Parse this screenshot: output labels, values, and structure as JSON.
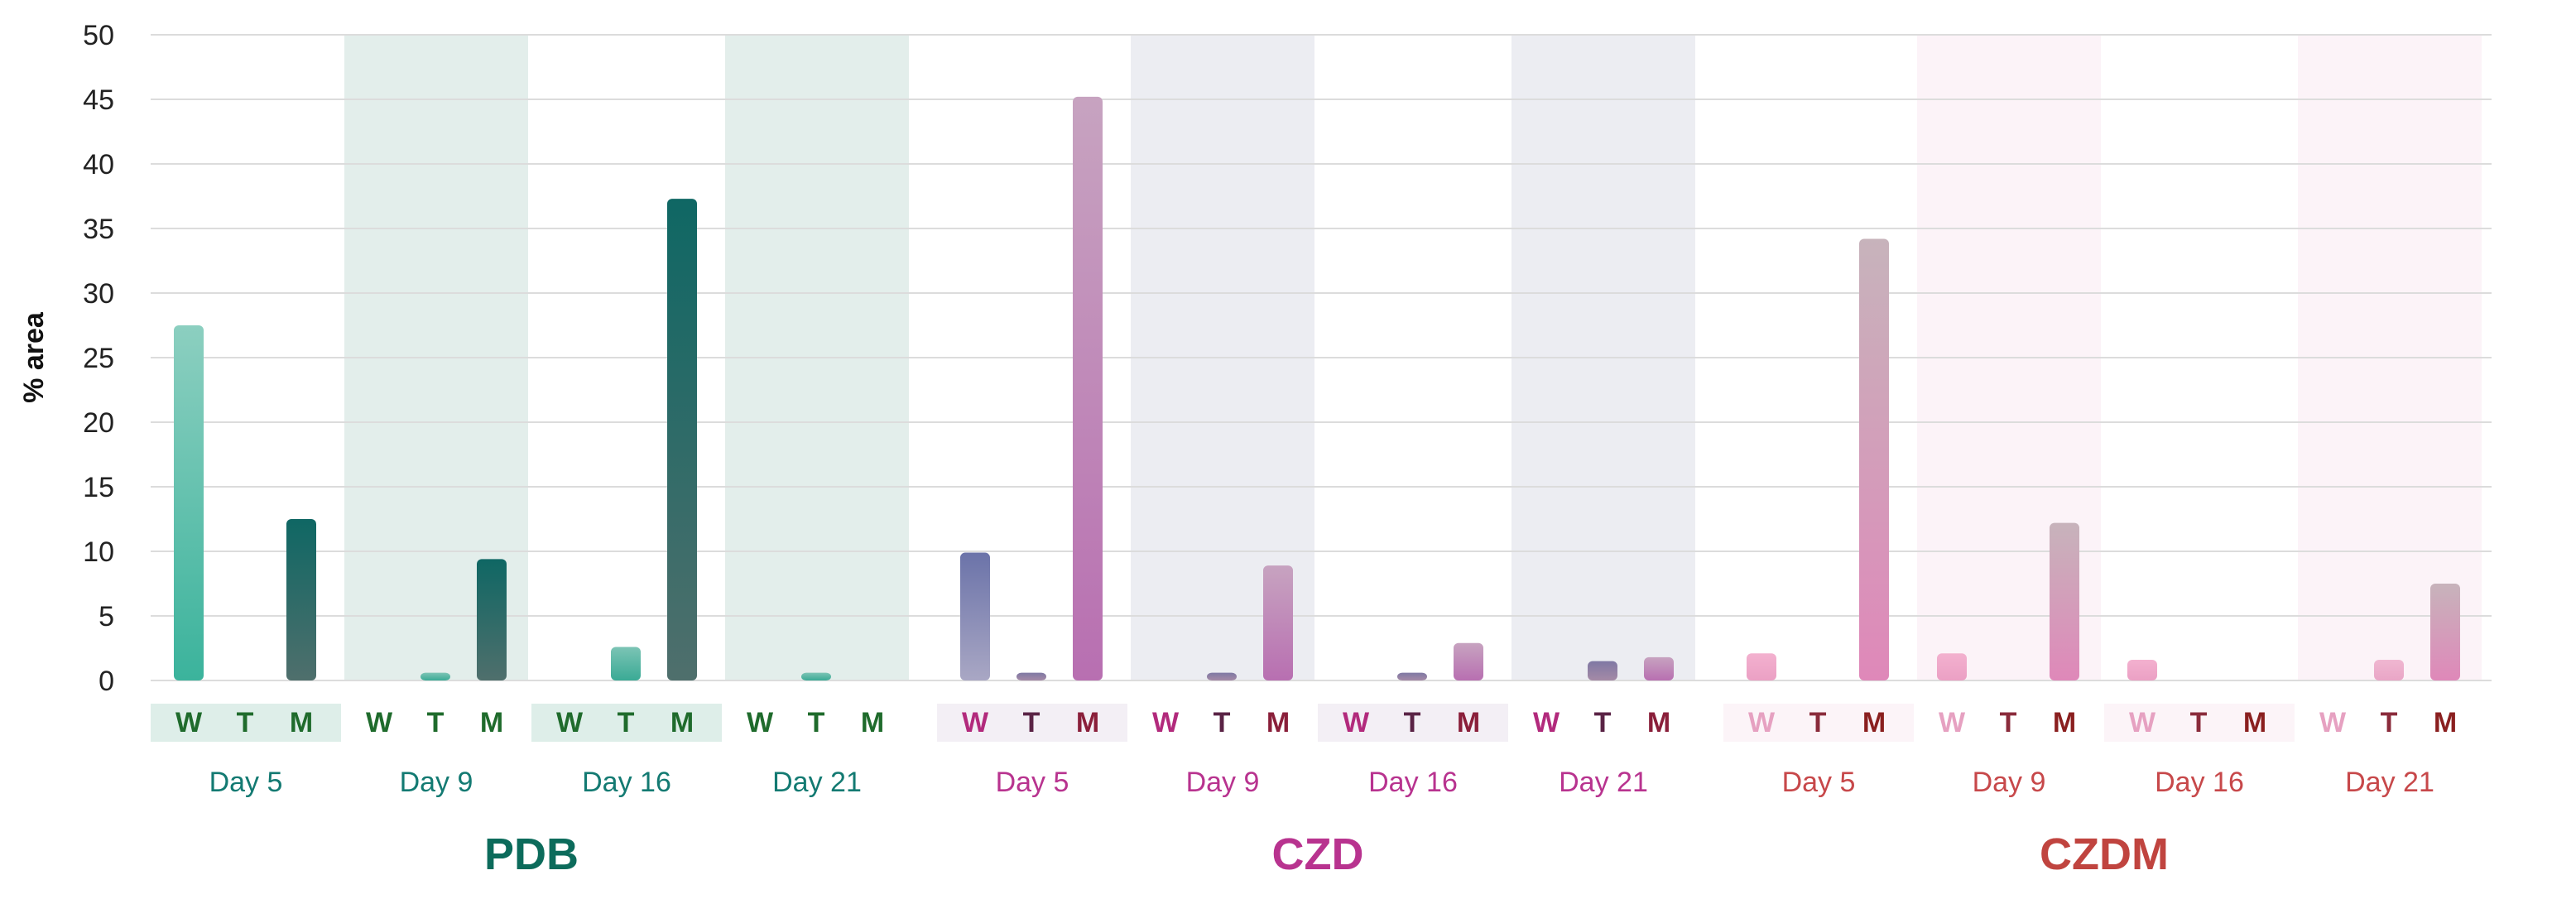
{
  "chart_data": {
    "type": "bar",
    "ylabel": "% area",
    "xlabel": "",
    "title": "",
    "ylim": [
      0,
      50
    ],
    "yticks": [
      0,
      5,
      10,
      15,
      20,
      25,
      30,
      35,
      40,
      45,
      50
    ],
    "grid": true,
    "subcategories": [
      "W",
      "T",
      "M"
    ],
    "groups": [
      {
        "name": "PDB",
        "color": "#0f6b5a",
        "days": [
          {
            "label": "Day 5",
            "values": [
              27.5,
              0,
              12.5
            ]
          },
          {
            "label": "Day 9",
            "values": [
              0,
              0.6,
              9.4
            ]
          },
          {
            "label": "Day 16",
            "values": [
              0,
              2.6,
              37.3
            ]
          },
          {
            "label": "Day 21",
            "values": [
              0,
              0.6,
              0
            ]
          }
        ]
      },
      {
        "name": "CZD",
        "color": "#b8338f",
        "days": [
          {
            "label": "Day 5",
            "values": [
              9.9,
              0.6,
              45.2
            ]
          },
          {
            "label": "Day 9",
            "values": [
              0,
              0.6,
              8.9
            ]
          },
          {
            "label": "Day 16",
            "values": [
              0,
              0.6,
              2.9
            ]
          },
          {
            "label": "Day 21",
            "values": [
              0,
              1.5,
              1.8
            ]
          }
        ]
      },
      {
        "name": "CZDM",
        "color": "#c0443f",
        "days": [
          {
            "label": "Day 5",
            "values": [
              2.1,
              0,
              34.2
            ]
          },
          {
            "label": "Day 9",
            "values": [
              2.1,
              0,
              12.2
            ]
          },
          {
            "label": "Day 16",
            "values": [
              1.6,
              0,
              0
            ]
          },
          {
            "label": "Day 21",
            "values": [
              0,
              1.6,
              7.5
            ]
          }
        ]
      }
    ]
  }
}
